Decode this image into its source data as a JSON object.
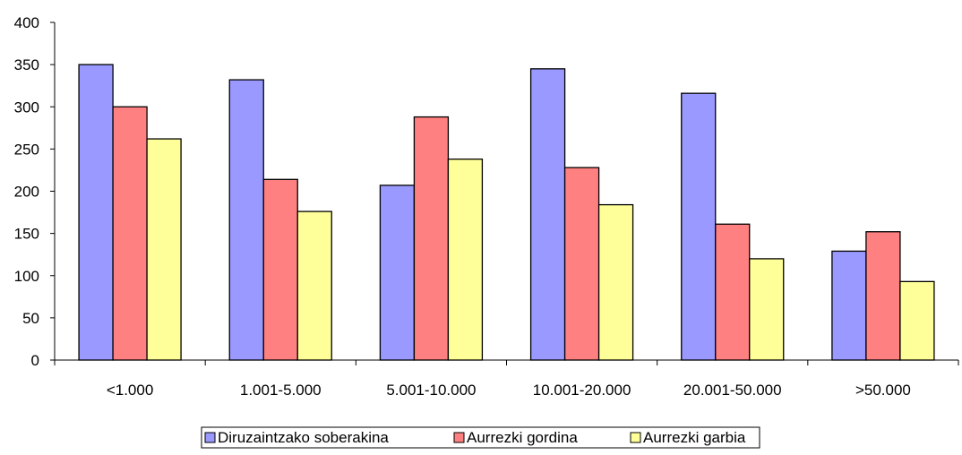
{
  "chart_data": {
    "type": "bar",
    "categories": [
      "<1.000",
      "1.001-5.000",
      "5.001-10.000",
      "10.001-20.000",
      "20.001-50.000",
      ">50.000"
    ],
    "series": [
      {
        "name": "Diruzaintzako soberakina",
        "color": "#9999ff",
        "values": [
          350,
          332,
          207,
          345,
          316,
          129
        ]
      },
      {
        "name": "Aurrezki gordina",
        "color": "#ff8080",
        "values": [
          300,
          214,
          288,
          228,
          161,
          152
        ]
      },
      {
        "name": "Aurrezki garbia",
        "color": "#ffff99",
        "values": [
          262,
          176,
          238,
          184,
          120,
          93
        ]
      }
    ],
    "ylim": [
      0,
      400
    ],
    "yticks": [
      0,
      50,
      100,
      150,
      200,
      250,
      300,
      350,
      400
    ],
    "grid": false,
    "legend_position": "bottom-center",
    "title": "",
    "xlabel": "",
    "ylabel": ""
  }
}
